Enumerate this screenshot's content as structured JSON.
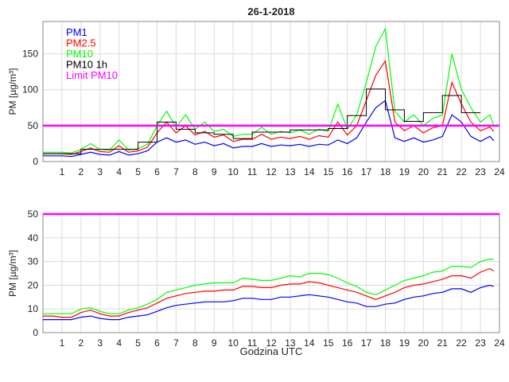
{
  "chart_data": [
    {
      "type": "line",
      "title": "26-1-2018",
      "xlabel": "",
      "ylabel": "PM [µg/m³]",
      "xlim": [
        0,
        24
      ],
      "ylim": [
        0,
        195
      ],
      "xticks": [
        1,
        2,
        3,
        4,
        5,
        6,
        7,
        8,
        9,
        10,
        11,
        12,
        13,
        14,
        15,
        16,
        17,
        18,
        19,
        20,
        21,
        22,
        23,
        24
      ],
      "yticks": [
        0,
        50,
        100,
        150
      ],
      "grid": true,
      "legend_position": "top-left",
      "x": [
        0,
        0.5,
        1,
        1.5,
        2,
        2.5,
        3,
        3.5,
        4,
        4.5,
        5,
        5.5,
        6,
        6.5,
        7,
        7.5,
        8,
        8.5,
        9,
        9.5,
        10,
        10.5,
        11,
        11.5,
        12,
        12.5,
        13,
        13.5,
        14,
        14.5,
        15,
        15.5,
        16,
        16.5,
        17,
        17.5,
        18,
        18.5,
        19,
        19.5,
        20,
        20.5,
        21,
        21.5,
        22,
        22.5,
        23,
        23.5,
        23.7
      ],
      "series": [
        {
          "name": "PM10",
          "color": "#00ff00",
          "values": [
            13,
            13,
            13,
            12,
            17,
            25,
            17,
            16,
            30,
            16,
            18,
            24,
            50,
            70,
            48,
            65,
            45,
            55,
            42,
            45,
            35,
            38,
            38,
            48,
            38,
            42,
            40,
            44,
            38,
            45,
            42,
            80,
            45,
            65,
            110,
            160,
            185,
            70,
            55,
            65,
            50,
            60,
            65,
            150,
            100,
            75,
            55,
            65,
            50
          ]
        },
        {
          "name": "PM2.5",
          "color": "#ff0000",
          "values": [
            11,
            11,
            11,
            10,
            14,
            19,
            14,
            13,
            22,
            13,
            15,
            20,
            40,
            55,
            40,
            50,
            37,
            42,
            34,
            37,
            28,
            31,
            31,
            38,
            31,
            34,
            32,
            35,
            31,
            36,
            34,
            55,
            37,
            50,
            85,
            120,
            140,
            55,
            43,
            50,
            40,
            47,
            50,
            110,
            80,
            55,
            43,
            48,
            42
          ]
        },
        {
          "name": "PM1",
          "color": "#0000ff",
          "values": [
            8,
            8,
            8,
            7,
            10,
            13,
            10,
            9,
            14,
            9,
            11,
            15,
            27,
            33,
            27,
            30,
            24,
            27,
            22,
            25,
            19,
            21,
            21,
            25,
            21,
            23,
            22,
            24,
            21,
            24,
            23,
            30,
            25,
            33,
            55,
            75,
            85,
            33,
            28,
            33,
            27,
            30,
            35,
            65,
            55,
            35,
            28,
            35,
            29
          ]
        }
      ],
      "hourly_pm10": {
        "name": "PM10 1h",
        "color": "#000000",
        "values": [
          11,
          11,
          17,
          17,
          17,
          27,
          55,
          45,
          40,
          38,
          32,
          41,
          41,
          44,
          44,
          46,
          64,
          101,
          72,
          56,
          68,
          92,
          68
        ]
      },
      "limit": {
        "name": "Limit PM10",
        "color": "#ff00ff",
        "value": 50
      },
      "legend": [
        {
          "label": "PM1",
          "color": "#0000ff"
        },
        {
          "label": "PM2.5",
          "color": "#ff0000"
        },
        {
          "label": "PM10",
          "color": "#00ff00"
        },
        {
          "label": "PM10 1h",
          "color": "#000000"
        },
        {
          "label": "Limit PM10",
          "color": "#ff00ff"
        }
      ]
    },
    {
      "type": "line",
      "title": "",
      "xlabel": "Godzina UTC",
      "ylabel": "PM [µg/m³]",
      "xlim": [
        0,
        24
      ],
      "ylim": [
        0,
        50
      ],
      "xticks": [
        1,
        2,
        3,
        4,
        5,
        6,
        7,
        8,
        9,
        10,
        11,
        12,
        13,
        14,
        15,
        16,
        17,
        18,
        19,
        20,
        21,
        22,
        23,
        24
      ],
      "yticks": [
        0,
        10,
        20,
        30,
        40,
        50
      ],
      "grid": true,
      "x": [
        0,
        0.5,
        1,
        1.5,
        2,
        2.5,
        3,
        3.5,
        4,
        4.5,
        5,
        5.5,
        6,
        6.5,
        7,
        7.5,
        8,
        8.5,
        9,
        9.5,
        10,
        10.5,
        11,
        11.5,
        12,
        12.5,
        13,
        13.5,
        14,
        14.5,
        15,
        15.5,
        16,
        16.5,
        17,
        17.5,
        18,
        18.5,
        19,
        19.5,
        20,
        20.5,
        21,
        21.5,
        22,
        22.5,
        23,
        23.5,
        23.7
      ],
      "series": [
        {
          "name": "PM10",
          "color": "#00ff00",
          "values": [
            8,
            8,
            8,
            8,
            10,
            10.5,
            9,
            8,
            8,
            9.5,
            10.5,
            12,
            14,
            17,
            18,
            19,
            20,
            20.5,
            21,
            21,
            21,
            23,
            22.5,
            22,
            22,
            23,
            24,
            23.5,
            25,
            25,
            24.5,
            23,
            21,
            19.5,
            17,
            16,
            18,
            20,
            22,
            23,
            24,
            25.5,
            26,
            28,
            28,
            27.5,
            30,
            31,
            31
          ]
        },
        {
          "name": "PM2.5",
          "color": "#ff0000",
          "values": [
            7,
            7,
            6.5,
            6.5,
            8.5,
            9.5,
            8,
            7,
            7,
            8.5,
            9.5,
            10.5,
            12.5,
            14.5,
            15.5,
            16.5,
            17,
            17.5,
            17.5,
            18,
            18,
            19.5,
            19.5,
            19,
            19,
            20,
            20.5,
            20.5,
            21.5,
            21,
            20,
            19,
            18,
            17,
            15.5,
            14,
            15.5,
            17,
            19,
            20,
            20.5,
            21.5,
            22.5,
            24,
            24,
            23,
            25.5,
            27,
            26
          ]
        },
        {
          "name": "PM1",
          "color": "#0000ff",
          "values": [
            5.5,
            5.5,
            5.5,
            5.5,
            6.5,
            7,
            6,
            5.5,
            5.5,
            6.5,
            7,
            7.5,
            9,
            10.5,
            11.5,
            12,
            12.5,
            13,
            13,
            13,
            13.5,
            14.5,
            14.5,
            14,
            14,
            15,
            15,
            15.5,
            16,
            15.5,
            15,
            14,
            13,
            12.5,
            11,
            11,
            12,
            12.5,
            14,
            15,
            15.5,
            16.5,
            17,
            18.5,
            18.5,
            17,
            19,
            20,
            19.5
          ]
        }
      ],
      "limit": {
        "name": "Limit PM10",
        "color": "#ff00ff",
        "value": 50
      }
    }
  ]
}
